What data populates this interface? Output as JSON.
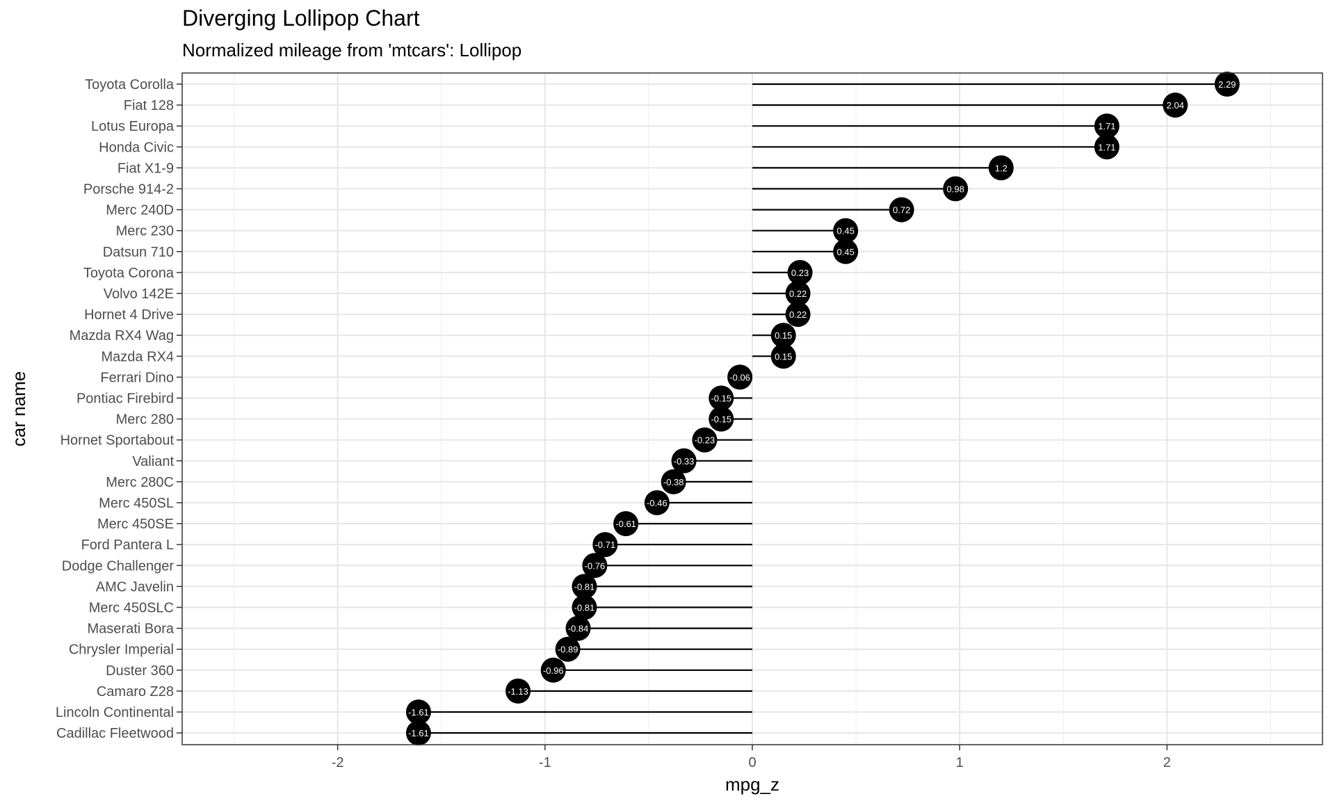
{
  "chart_data": {
    "type": "lollipop",
    "title": "Diverging Lollipop Chart",
    "subtitle": "Normalized mileage from 'mtcars': Lollipop",
    "xlabel": "mpg_z",
    "ylabel": "car name",
    "xlim": [
      -2.75,
      2.75
    ],
    "x_ticks": [
      -2,
      -1,
      0,
      1,
      2
    ],
    "x_tick_labels": [
      "-2",
      "-1",
      "0",
      "1",
      "2"
    ],
    "grid": true,
    "point_color": "#000000",
    "label_color": "#ffffff",
    "categories": [
      "Toyota Corolla",
      "Fiat 128",
      "Lotus Europa",
      "Honda Civic",
      "Fiat X1-9",
      "Porsche 914-2",
      "Merc 240D",
      "Merc 230",
      "Datsun 710",
      "Toyota Corona",
      "Volvo 142E",
      "Hornet 4 Drive",
      "Mazda RX4 Wag",
      "Mazda RX4",
      "Ferrari Dino",
      "Pontiac Firebird",
      "Merc 280",
      "Hornet Sportabout",
      "Valiant",
      "Merc 280C",
      "Merc 450SL",
      "Merc 450SE",
      "Ford Pantera L",
      "Dodge Challenger",
      "AMC Javelin",
      "Merc 450SLC",
      "Maserati Bora",
      "Chrysler Imperial",
      "Duster 360",
      "Camaro Z28",
      "Lincoln Continental",
      "Cadillac Fleetwood"
    ],
    "values": [
      2.29,
      2.04,
      1.71,
      1.71,
      1.2,
      0.98,
      0.72,
      0.45,
      0.45,
      0.23,
      0.22,
      0.22,
      0.15,
      0.15,
      -0.06,
      -0.15,
      -0.15,
      -0.23,
      -0.33,
      -0.38,
      -0.46,
      -0.61,
      -0.71,
      -0.76,
      -0.81,
      -0.81,
      -0.84,
      -0.89,
      -0.96,
      -1.13,
      -1.61,
      -1.61
    ],
    "value_labels": [
      "2.29",
      "2.04",
      "1.71",
      "1.71",
      "1.2",
      "0.98",
      "0.72",
      "0.45",
      "0.45",
      "0.23",
      "0.22",
      "0.22",
      "0.15",
      "0.15",
      "-0.06",
      "-0.15",
      "-0.15",
      "-0.23",
      "-0.33",
      "-0.38",
      "-0.46",
      "-0.61",
      "-0.71",
      "-0.76",
      "-0.81",
      "-0.81",
      "-0.84",
      "-0.89",
      "-0.96",
      "-1.13",
      "-1.61",
      "-1.61"
    ]
  }
}
